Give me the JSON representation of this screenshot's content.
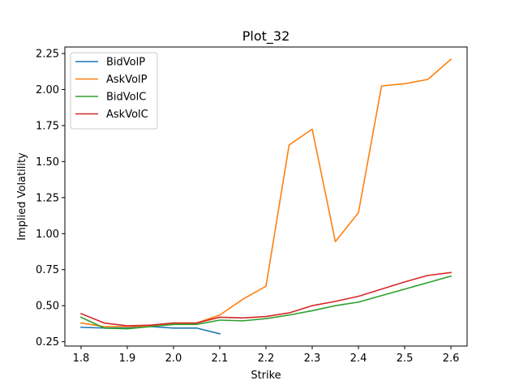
{
  "chart_data": {
    "type": "line",
    "title": "Plot_32",
    "xlabel": "Strike",
    "ylabel": "Implied Volatility",
    "xlim": [
      1.765,
      2.635
    ],
    "ylim": [
      0.22,
      2.295
    ],
    "xticks": [
      1.8,
      1.9,
      2.0,
      2.1,
      2.2,
      2.3,
      2.4,
      2.5,
      2.6
    ],
    "xtick_labels": [
      "1.8",
      "1.9",
      "2.0",
      "2.1",
      "2.2",
      "2.3",
      "2.4",
      "2.5",
      "2.6"
    ],
    "yticks": [
      0.25,
      0.5,
      0.75,
      1.0,
      1.25,
      1.5,
      1.75,
      2.0,
      2.25
    ],
    "ytick_labels": [
      "0.25",
      "0.50",
      "0.75",
      "1.00",
      "1.25",
      "1.50",
      "1.75",
      "2.00",
      "2.25"
    ],
    "grid": false,
    "legend_position": "top-left",
    "series": [
      {
        "name": "BidVolP",
        "color": "#1f77b4",
        "x": [
          1.8,
          1.85,
          1.9,
          1.95,
          2.0,
          2.05,
          2.1
        ],
        "y": [
          0.35,
          0.345,
          0.345,
          0.355,
          0.345,
          0.345,
          0.305
        ]
      },
      {
        "name": "AskVolP",
        "color": "#ff7f0e",
        "x": [
          1.8,
          1.85,
          1.9,
          1.95,
          2.0,
          2.05,
          2.1,
          2.15,
          2.2,
          2.25,
          2.3,
          2.35,
          2.4,
          2.45,
          2.5,
          2.55,
          2.6
        ],
        "y": [
          0.38,
          0.355,
          0.355,
          0.36,
          0.37,
          0.38,
          0.435,
          0.545,
          0.635,
          1.615,
          1.725,
          0.945,
          1.145,
          2.025,
          2.04,
          2.07,
          2.21
        ]
      },
      {
        "name": "BidVolC",
        "color": "#2ca02c",
        "x": [
          1.8,
          1.85,
          1.9,
          1.95,
          2.0,
          2.05,
          2.1,
          2.15,
          2.2,
          2.25,
          2.3,
          2.35,
          2.4,
          2.45,
          2.5,
          2.55,
          2.6
        ],
        "y": [
          0.42,
          0.345,
          0.34,
          0.355,
          0.37,
          0.37,
          0.4,
          0.395,
          0.41,
          0.435,
          0.465,
          0.5,
          0.525,
          0.57,
          0.615,
          0.66,
          0.705
        ]
      },
      {
        "name": "AskVolC",
        "color": "#d62728",
        "x": [
          1.8,
          1.85,
          1.9,
          1.95,
          2.0,
          2.05,
          2.1,
          2.15,
          2.2,
          2.25,
          2.3,
          2.35,
          2.4,
          2.45,
          2.5,
          2.55,
          2.6
        ],
        "y": [
          0.445,
          0.38,
          0.36,
          0.365,
          0.38,
          0.38,
          0.42,
          0.415,
          0.425,
          0.45,
          0.5,
          0.53,
          0.565,
          0.615,
          0.665,
          0.71,
          0.73
        ]
      }
    ]
  }
}
